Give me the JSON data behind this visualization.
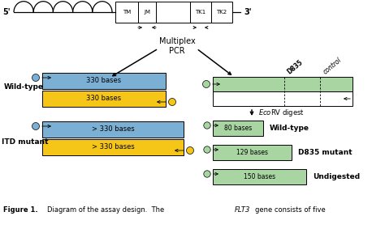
{
  "bg_color": "#ffffff",
  "fig_width": 4.74,
  "fig_height": 2.88,
  "dpi": 100,
  "blue_color": "#7bafd4",
  "yellow_color": "#f5c518",
  "green_color": "#a8d5a2",
  "white_color": "#ffffff",
  "black": "#000000",
  "xlim": [
    0,
    4.74
  ],
  "ylim": [
    0,
    2.88
  ]
}
